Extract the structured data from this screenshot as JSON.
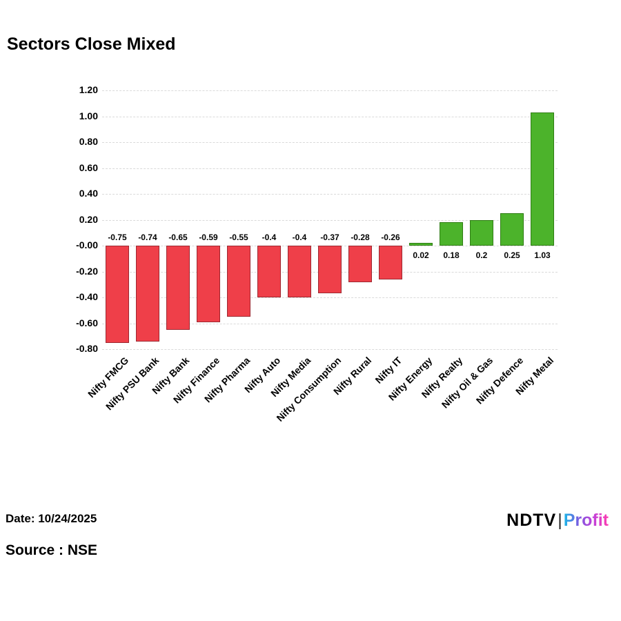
{
  "title": "Sectors Close Mixed",
  "footer": {
    "date": "Date: 10/24/2025",
    "source": "Source : NSE"
  },
  "logo": {
    "ndtv": "NDTV",
    "separator": "|",
    "profit": "Profit"
  },
  "chart_data": {
    "type": "bar",
    "title": "Sectors Close Mixed",
    "xlabel": "",
    "ylabel": "",
    "categories": [
      "Nifty FMCG",
      "Nifty PSU Bank",
      "Nifty Bank",
      "Nifty Finance",
      "Nifty Pharma",
      "Nifty Auto",
      "Nifty Media",
      "Nifty Consumption",
      "Nifty Rural",
      "Nifty IT",
      "Nifty Energy",
      "Nifty Realty",
      "Nifty Oil & Gas",
      "Nifty Defence",
      "Nifty Metal"
    ],
    "values": [
      -0.75,
      -0.74,
      -0.65,
      -0.59,
      -0.55,
      -0.4,
      -0.4,
      -0.37,
      -0.28,
      -0.26,
      0.02,
      0.18,
      0.2,
      0.25,
      1.03
    ],
    "value_labels": [
      "-0.75",
      "-0.74",
      "-0.65",
      "-0.59",
      "-0.55",
      "-0.4",
      "-0.4",
      "-0.37",
      "-0.28",
      "-0.26",
      "0.02",
      "0.18",
      "0.2",
      "0.25",
      "1.03"
    ],
    "ylim": [
      -0.8,
      1.2
    ],
    "yticks": [
      1.2,
      1.0,
      0.8,
      0.6,
      0.4,
      0.2,
      0.0,
      -0.2,
      -0.4,
      -0.6,
      -0.8
    ],
    "ytick_labels": [
      "1.20",
      "1.00",
      "0.80",
      "0.60",
      "0.40",
      "0.20",
      "-0.00",
      "-0.20",
      "-0.40",
      "-0.60",
      "-0.80"
    ],
    "colors": {
      "positive": "#4cb32b",
      "negative": "#ef3f49"
    },
    "grid": true,
    "legend": false
  }
}
